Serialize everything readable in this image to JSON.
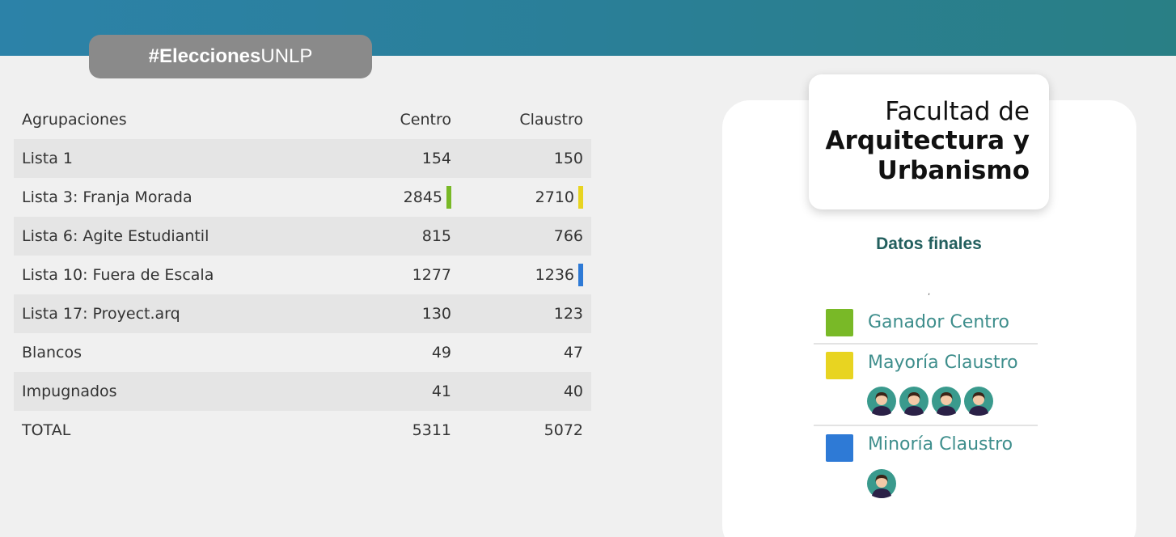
{
  "header": {
    "hashtag_bold": "#Elecciones",
    "hashtag_regular": "UNLP"
  },
  "table": {
    "headers": {
      "name": "Agrupaciones",
      "centro": "Centro",
      "claustro": "Claustro"
    },
    "rows": [
      {
        "name": "Lista 1",
        "centro": "154",
        "claustro": "150",
        "centro_marker": "",
        "claustro_marker": ""
      },
      {
        "name": "Lista 3: Franja Morada",
        "centro": "2845",
        "claustro": "2710",
        "centro_marker": "#79b927",
        "claustro_marker": "#e8d421"
      },
      {
        "name": "Lista 6: Agite Estudiantil",
        "centro": "815",
        "claustro": "766",
        "centro_marker": "",
        "claustro_marker": ""
      },
      {
        "name": "Lista 10: Fuera de Escala",
        "centro": "1277",
        "claustro": "1236",
        "centro_marker": "",
        "claustro_marker": "#2e7ad6"
      },
      {
        "name": "Lista 17: Proyect.arq",
        "centro": "130",
        "claustro": "123",
        "centro_marker": "",
        "claustro_marker": ""
      },
      {
        "name": "Blancos",
        "centro": "49",
        "claustro": "47",
        "centro_marker": "",
        "claustro_marker": ""
      },
      {
        "name": "Impugnados",
        "centro": "41",
        "claustro": "40",
        "centro_marker": "",
        "claustro_marker": ""
      },
      {
        "name": "TOTAL",
        "centro": "5311",
        "claustro": "5072",
        "centro_marker": "",
        "claustro_marker": ""
      }
    ]
  },
  "faculty": {
    "line1": "Facultad de",
    "line2": "Arquitectura y",
    "line3": "Urbanismo"
  },
  "results": {
    "title": "Datos finales",
    "tick": ","
  },
  "legend": [
    {
      "label": "Ganador Centro",
      "color": "#79b927",
      "seats": 0
    },
    {
      "label": "Mayoría Claustro",
      "color": "#e8d421",
      "seats": 4
    },
    {
      "label": "Minoría Claustro",
      "color": "#2e7ad6",
      "seats": 1
    }
  ],
  "colors": {
    "header_gradient_start": "#2c82a8",
    "header_gradient_end": "#297f85",
    "title_green": "#235f5e",
    "legend_text": "#3e8e8c",
    "avatar_bg": "#3a9a8d"
  }
}
